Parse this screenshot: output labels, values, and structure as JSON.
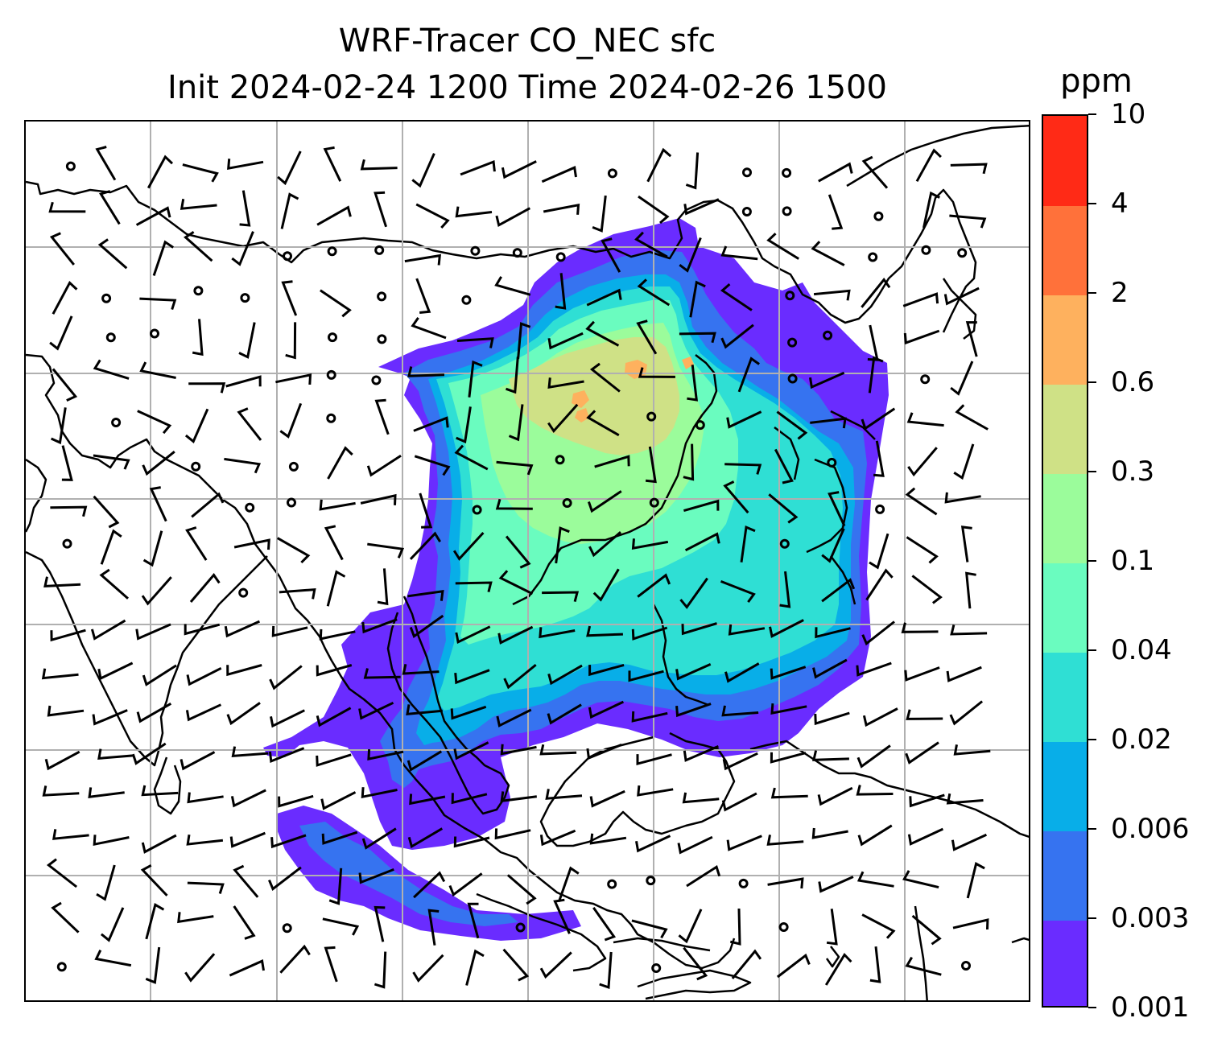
{
  "title": {
    "line1": "WRF-Tracer CO_NEC sfc",
    "line2": "Init 2024-02-24 1200 Time 2024-02-26 1500"
  },
  "colorbar": {
    "unit": "ppm",
    "levels": [
      "0.001",
      "0.003",
      "0.006",
      "0.02",
      "0.04",
      "0.1",
      "0.3",
      "0.6",
      "2",
      "4",
      "10"
    ],
    "colors": [
      "#6a2cff",
      "#3673f0",
      "#08aee8",
      "#2fdfd4",
      "#6afcbf",
      "#9bfc9b",
      "#cfe186",
      "#feb15e",
      "#ff713a",
      "#ff2a16"
    ]
  },
  "map": {
    "gridline_color": "#b0b0b0",
    "coastline_color": "#000000",
    "barb_color": "#000000",
    "calm_marker": "circle"
  }
}
